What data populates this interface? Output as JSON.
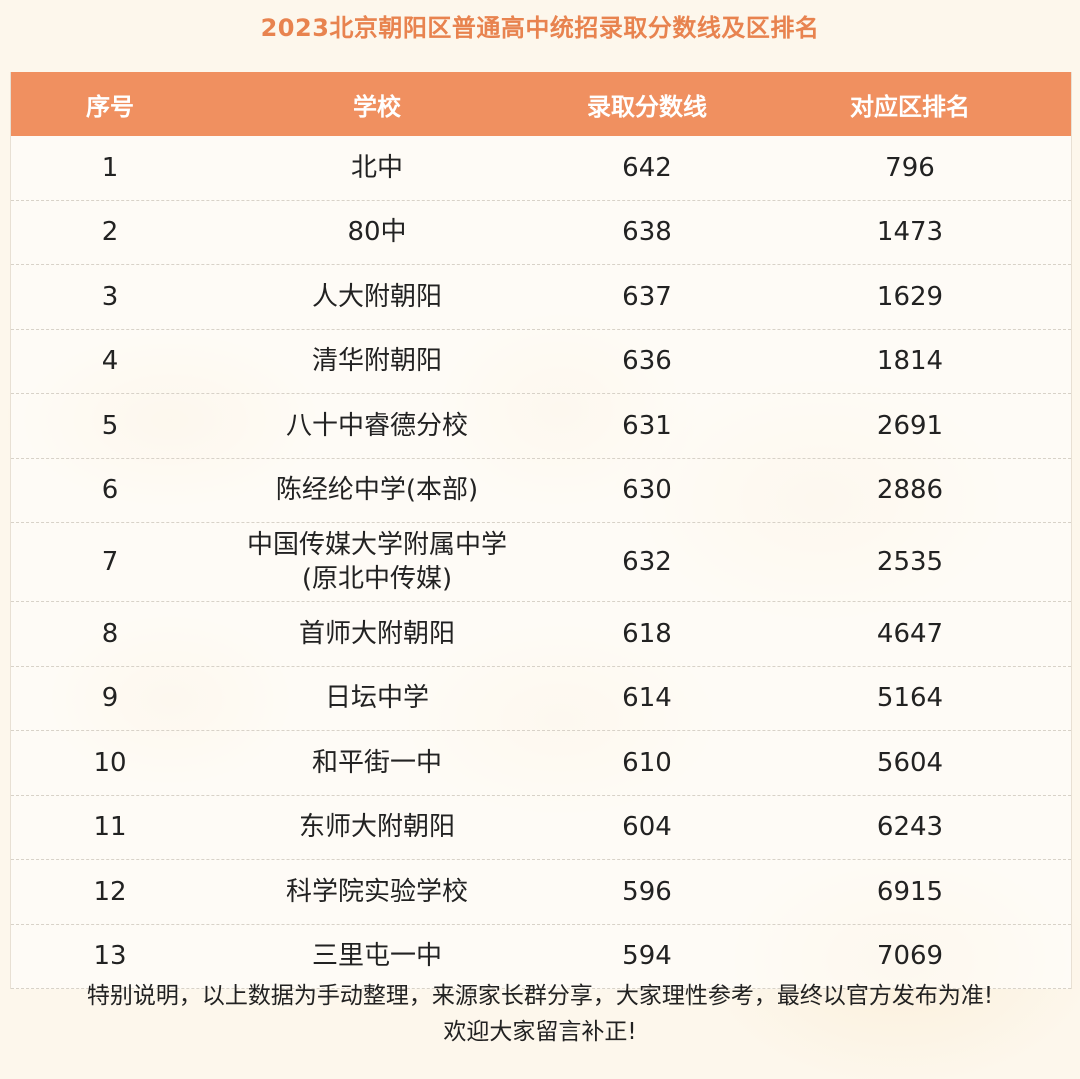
{
  "title": "2023北京朝阳区普通高中统招录取分数线及区排名",
  "headers": {
    "index": "序号",
    "school": "学校",
    "score": "录取分数线",
    "rank": "对应区排名"
  },
  "rows": [
    {
      "index": "1",
      "school": "北中",
      "score": "642",
      "rank": "796"
    },
    {
      "index": "2",
      "school": "80中",
      "score": "638",
      "rank": "1473"
    },
    {
      "index": "3",
      "school": "人大附朝阳",
      "score": "637",
      "rank": "1629"
    },
    {
      "index": "4",
      "school": "清华附朝阳",
      "score": "636",
      "rank": "1814"
    },
    {
      "index": "5",
      "school": "八十中睿德分校",
      "score": "631",
      "rank": "2691"
    },
    {
      "index": "6",
      "school": "陈经纶中学(本部)",
      "score": "630",
      "rank": "2886"
    },
    {
      "index": "7",
      "school": "中国传媒大学附属中学(原北中传媒)",
      "score": "632",
      "rank": "2535"
    },
    {
      "index": "8",
      "school": "首师大附朝阳",
      "score": "618",
      "rank": "4647"
    },
    {
      "index": "9",
      "school": "日坛中学",
      "score": "614",
      "rank": "5164"
    },
    {
      "index": "10",
      "school": "和平街一中",
      "score": "610",
      "rank": "5604"
    },
    {
      "index": "11",
      "school": "东师大附朝阳",
      "score": "604",
      "rank": "6243"
    },
    {
      "index": "12",
      "school": "科学院实验学校",
      "score": "596",
      "rank": "6915"
    },
    {
      "index": "13",
      "school": "三里屯一中",
      "score": "594",
      "rank": "7069"
    }
  ],
  "note": {
    "line1": "特别说明，以上数据为手动整理，来源家长群分享，大家理性参考，最终以官方发布为准!",
    "line2": "欢迎大家留言补正!"
  },
  "colors": {
    "header_bg": "#f09060",
    "title": "#e8834f"
  }
}
